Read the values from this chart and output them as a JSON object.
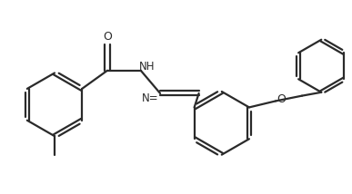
{
  "bg_color": "#ffffff",
  "line_color": "#2a2a2a",
  "line_width": 1.6,
  "figsize": [
    3.87,
    2.14
  ],
  "dpi": 100,
  "atoms": {
    "O_label": "O",
    "NH_label": "NH",
    "N_label": "N",
    "O2_label": "O"
  }
}
